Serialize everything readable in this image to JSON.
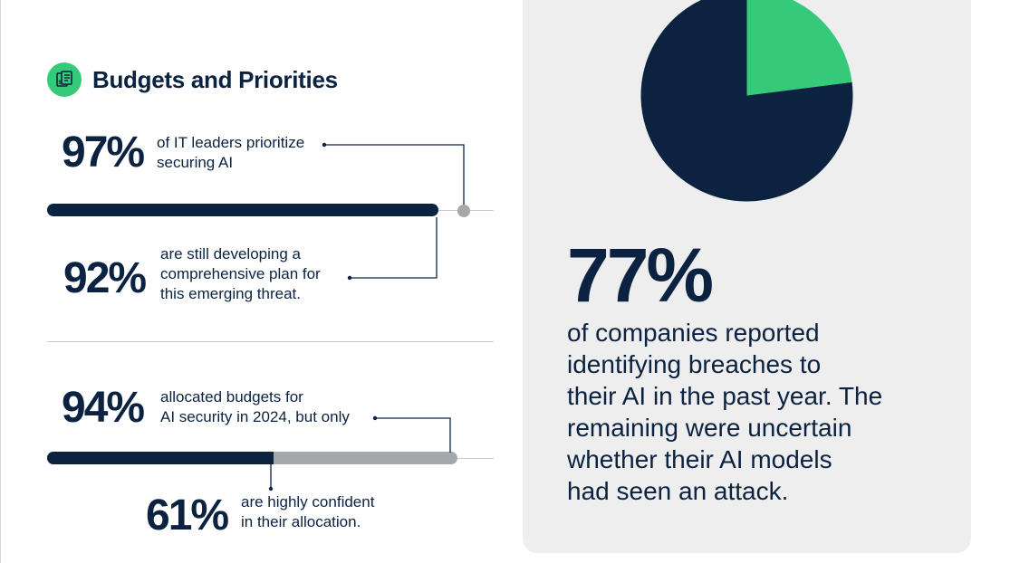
{
  "section": {
    "title": "Budgets and Priorities",
    "icon": "budget-document-icon"
  },
  "stats": {
    "s97": {
      "value": "97%",
      "text_line1": "of IT leaders prioritize",
      "text_line2": "securing AI",
      "fraction": 0.97
    },
    "s92": {
      "value": "92%",
      "text_line1": "are still developing a",
      "text_line2": "comprehensive plan for",
      "text_line3": "this emerging threat.",
      "fraction": 0.92
    },
    "s94": {
      "value": "94%",
      "text_line1": "allocated budgets for",
      "text_line2": "AI security in 2024, but only",
      "fraction": 0.94
    },
    "s61": {
      "value": "61%",
      "text_line1": "are highly confident",
      "text_line2": "in their allocation.",
      "fraction": 0.61
    }
  },
  "panel": {
    "value": "77%",
    "text_line1": "of companies reported",
    "text_line2": "identifying breaches to",
    "text_line3": "their AI in the past year. The",
    "text_line4": "remaining were uncertain",
    "text_line5": "whether their AI models",
    "text_line6": "had seen an attack.",
    "pie_fraction": 0.77
  },
  "colors": {
    "navy": "#0b2341",
    "green": "#35c97a",
    "gray": "#a6a7aa",
    "panel": "#eeeeef"
  }
}
